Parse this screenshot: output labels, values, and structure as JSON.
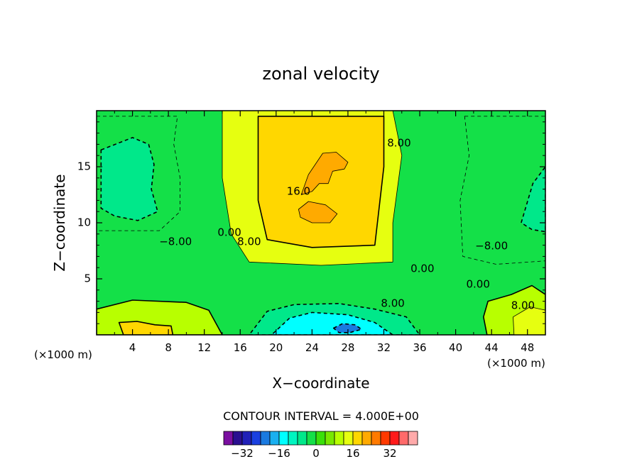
{
  "chart_data": {
    "type": "heatmap",
    "title": "zonal velocity",
    "xlabel": "X−coordinate",
    "ylabel": "Z−coordinate",
    "x_unit_left": "(×1000 m)",
    "x_unit_right": "(×1000 m)",
    "xlim": [
      0,
      50
    ],
    "ylim": [
      0,
      20
    ],
    "x_ticks": [
      4,
      8,
      12,
      16,
      20,
      24,
      28,
      32,
      36,
      40,
      44,
      48
    ],
    "y_ticks": [
      5,
      10,
      15
    ],
    "contour_interval_text": "CONTOUR INTERVAL = 4.000E+00",
    "contour_labels": [
      {
        "text": "16.0",
        "x": 22.5,
        "y": 12.8
      },
      {
        "text": "8.00",
        "x": 33.7,
        "y": 17.1
      },
      {
        "text": "0.00",
        "x": 14.8,
        "y": 9.1
      },
      {
        "text": "8.00",
        "x": 17.0,
        "y": 8.3
      },
      {
        "text": "−8.00",
        "x": 8.8,
        "y": 8.3
      },
      {
        "text": "0.00",
        "x": 36.3,
        "y": 5.9
      },
      {
        "text": "0.00",
        "x": 42.5,
        "y": 4.5
      },
      {
        "text": "−8.00",
        "x": 44.0,
        "y": 7.9
      },
      {
        "text": "8.00",
        "x": 33.0,
        "y": 2.8
      },
      {
        "text": "8.00",
        "x": 47.5,
        "y": 2.6
      }
    ],
    "regions": [
      {
        "name": "upper-center-jet",
        "value": 12,
        "pts": [
          [
            14,
            20
          ],
          [
            33,
            20
          ],
          [
            34,
            16
          ],
          [
            33,
            10
          ],
          [
            33,
            6.5
          ],
          [
            25,
            6.2
          ],
          [
            17,
            6.5
          ],
          [
            15,
            9
          ],
          [
            14,
            14
          ]
        ]
      },
      {
        "name": "upper-center-core",
        "value": 16,
        "pts": [
          [
            18,
            19.5
          ],
          [
            32,
            19.5
          ],
          [
            32,
            15
          ],
          [
            31,
            8
          ],
          [
            24,
            7.8
          ],
          [
            19,
            8.5
          ],
          [
            18,
            12
          ]
        ]
      },
      {
        "name": "peak-16",
        "value": 20,
        "pts": [
          [
            22.8,
            12.5
          ],
          [
            23.6,
            14.3
          ],
          [
            25.2,
            16.2
          ],
          [
            26.7,
            16.3
          ],
          [
            28,
            15.4
          ],
          [
            27.6,
            14.8
          ],
          [
            26.3,
            14.6
          ],
          [
            25.8,
            13.5
          ],
          [
            24.8,
            13.5
          ],
          [
            24,
            12.8
          ]
        ]
      },
      {
        "name": "peak-16-lower",
        "value": 20,
        "pts": [
          [
            22.5,
            11.2
          ],
          [
            23.6,
            11.9
          ],
          [
            25.5,
            11.6
          ],
          [
            26.8,
            10.8
          ],
          [
            26,
            10.0
          ],
          [
            24,
            10.0
          ],
          [
            22.7,
            10.5
          ]
        ]
      },
      {
        "name": "upper-left-neg",
        "value": -4,
        "pts": [
          [
            0,
            19.5
          ],
          [
            9,
            19.5
          ],
          [
            8.6,
            17
          ],
          [
            9.3,
            14
          ],
          [
            9.3,
            11
          ],
          [
            7,
            9.3
          ],
          [
            0,
            9.3
          ]
        ]
      },
      {
        "name": "upper-left-neg-core",
        "value": -8,
        "pts": [
          [
            0.5,
            16.5
          ],
          [
            4,
            17.6
          ],
          [
            5.8,
            17
          ],
          [
            6.4,
            15.2
          ],
          [
            6.1,
            13
          ],
          [
            6.8,
            11
          ],
          [
            4.6,
            10.2
          ],
          [
            2,
            10.6
          ],
          [
            0.5,
            11.3
          ]
        ]
      },
      {
        "name": "right-neg",
        "value": -4,
        "pts": [
          [
            41,
            19.5
          ],
          [
            50,
            19.5
          ],
          [
            50,
            6.6
          ],
          [
            44.5,
            6.3
          ],
          [
            40.8,
            7
          ],
          [
            40.5,
            12
          ],
          [
            41.5,
            16
          ]
        ]
      },
      {
        "name": "right-neg-core",
        "value": -8,
        "pts": [
          [
            47.3,
            10
          ],
          [
            48.6,
            13.5
          ],
          [
            50,
            15
          ],
          [
            50,
            9.2
          ],
          [
            48.5,
            9.4
          ]
        ]
      },
      {
        "name": "lower-left-pos",
        "value": 8,
        "pts": [
          [
            0,
            2.3
          ],
          [
            4,
            3.1
          ],
          [
            10,
            2.9
          ],
          [
            12.5,
            2.2
          ],
          [
            14,
            0
          ],
          [
            0,
            0
          ]
        ]
      },
      {
        "name": "lower-left-peak",
        "value": 16,
        "pts": [
          [
            2.5,
            1.1
          ],
          [
            4.5,
            1.2
          ],
          [
            6.5,
            0.9
          ],
          [
            8.3,
            0.8
          ],
          [
            8.5,
            0
          ],
          [
            3,
            0
          ]
        ]
      },
      {
        "name": "lower-center-neg",
        "value": -8,
        "pts": [
          [
            17,
            0
          ],
          [
            36,
            0
          ],
          [
            34.5,
            1.6
          ],
          [
            31,
            2.3
          ],
          [
            27,
            2.8
          ],
          [
            22,
            2.7
          ],
          [
            19,
            2.1
          ]
        ]
      },
      {
        "name": "lower-center-core",
        "value": -16,
        "pts": [
          [
            19.5,
            0
          ],
          [
            33,
            0
          ],
          [
            31,
            1.1
          ],
          [
            28,
            1.8
          ],
          [
            24,
            2.0
          ],
          [
            21.5,
            1.5
          ]
        ]
      },
      {
        "name": "lower-center-deepest",
        "value": -24,
        "pts": [
          [
            26.4,
            0.6
          ],
          [
            27.4,
            1.0
          ],
          [
            28.8,
            0.9
          ],
          [
            29.5,
            0.5
          ],
          [
            28.2,
            0.2
          ],
          [
            27,
            0.2
          ]
        ]
      },
      {
        "name": "lower-right-pos",
        "value": 8,
        "pts": [
          [
            43.5,
            0
          ],
          [
            50,
            0
          ],
          [
            50,
            3.6
          ],
          [
            48.5,
            4.4
          ],
          [
            46.2,
            3.6
          ],
          [
            43.6,
            3.0
          ],
          [
            43.1,
            1.6
          ]
        ]
      },
      {
        "name": "lower-right-peak",
        "value": 12,
        "pts": [
          [
            46.5,
            0
          ],
          [
            50,
            0
          ],
          [
            50,
            2.2
          ],
          [
            48.3,
            2.5
          ],
          [
            46.4,
            1.6
          ]
        ]
      }
    ],
    "colorbar": {
      "colors": [
        "#7a0fa0",
        "#2a0f90",
        "#2020b8",
        "#1a40e0",
        "#1a7ae0",
        "#1ab0f0",
        "#00ffff",
        "#00f5c0",
        "#00e88a",
        "#14e048",
        "#3ae00a",
        "#78e800",
        "#b8ff00",
        "#e6ff10",
        "#ffd700",
        "#ffaa00",
        "#ff7a00",
        "#ff3a00",
        "#ff1a1a",
        "#ff6a6a",
        "#ffaaaa"
      ],
      "min": -40,
      "step": 4,
      "tick_values": [
        -32,
        -16,
        0,
        16,
        32
      ],
      "tick_labels": [
        "−32",
        "−16",
        "0",
        "16",
        "32"
      ]
    }
  }
}
